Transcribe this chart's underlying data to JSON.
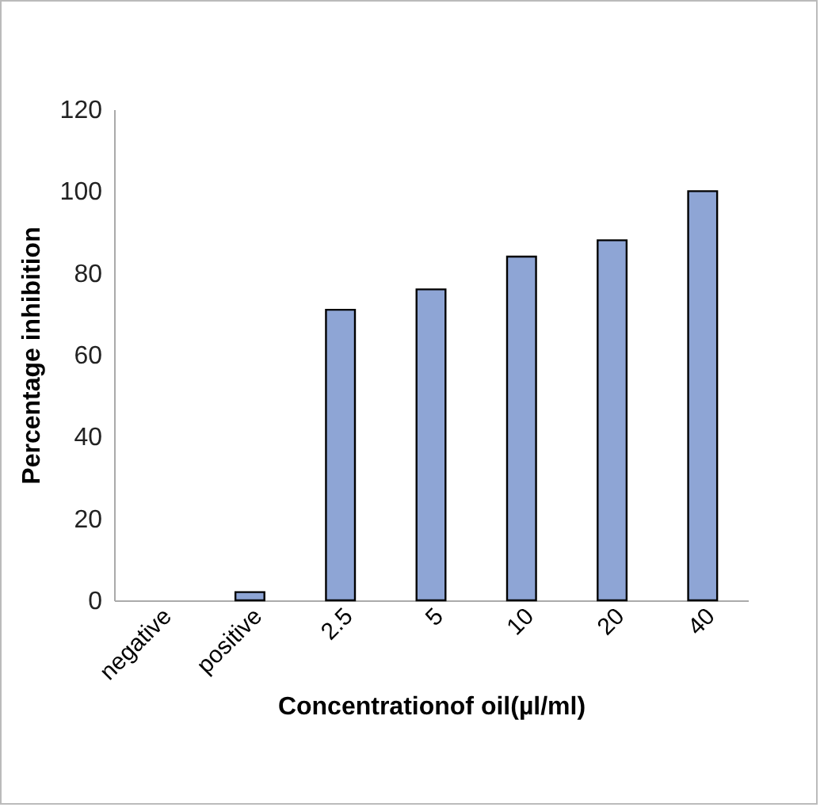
{
  "chart_data": {
    "type": "bar",
    "xlabel": "Concentrationof oil(µl/ml)",
    "ylabel": "Percentage inhibition",
    "categories": [
      "negative",
      "positive",
      "2.5",
      "5",
      "10",
      "20",
      "40"
    ],
    "values": [
      0,
      2,
      71,
      76,
      84,
      88,
      100
    ],
    "color": "#8ea5d5",
    "ylim": [
      0,
      120
    ],
    "yticks": [
      0,
      20,
      40,
      60,
      80,
      100,
      120
    ],
    "grid": false
  }
}
